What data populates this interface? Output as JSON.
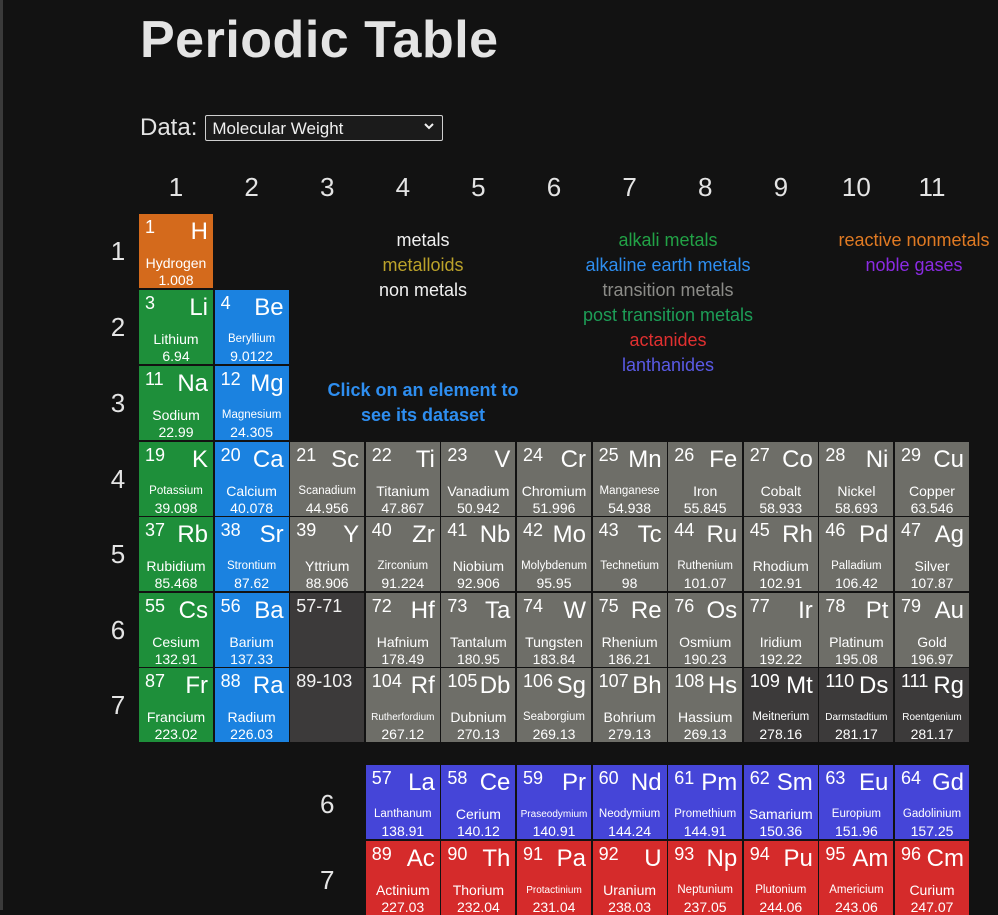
{
  "title": "Periodic Table",
  "data_selector": {
    "label": "Data:",
    "value": "Molecular Weight",
    "chevron_icon": "chevron-down-icon"
  },
  "column_numbers": [
    "1",
    "2",
    "3",
    "4",
    "5",
    "6",
    "7",
    "8",
    "9",
    "10",
    "11"
  ],
  "row_numbers": [
    "1",
    "2",
    "3",
    "4",
    "5",
    "6",
    "7"
  ],
  "series_row_numbers": [
    "6",
    "7"
  ],
  "legend": {
    "group1": [
      "metals",
      "metalloids",
      "non metals"
    ],
    "group2": [
      "alkali metals",
      "alkaline earth metals",
      "transition metals",
      "post transition metals",
      "actanides",
      "lanthanides"
    ],
    "group3": [
      "reactive nonmetals",
      "noble gases"
    ]
  },
  "hint": "Click on an element to see its dataset",
  "placeholders": [
    "57-71",
    "89-103"
  ],
  "colors": {
    "alkali": "#1e8f3a",
    "alkaline": "#1b82e0",
    "transition": "#6e6e68",
    "reactive": "#d46a1c",
    "lanthanide": "#4545d8",
    "actinide": "#d52b2b",
    "unknown": "#3c3a3a",
    "legend_metals": "#f0f0f0",
    "legend_metalloids": "#bba22a",
    "legend_non_metals": "#f0f0f0",
    "legend_alkali": "#22a246",
    "legend_alkaline": "#2e8ef0",
    "legend_transition": "#8c8c88",
    "legend_post_transition": "#1d9e57",
    "legend_actanides": "#e03030",
    "legend_lanthanides": "#5a5ae6",
    "legend_reactive": "#e07a23",
    "legend_noble": "#8a2be2"
  },
  "elements": [
    {
      "n": "1",
      "s": "H",
      "name": "Hydrogen",
      "w": "1.008",
      "cat": "reactive",
      "row": 1,
      "col": 1
    },
    {
      "n": "3",
      "s": "Li",
      "name": "Lithium",
      "w": "6.94",
      "cat": "alkali",
      "row": 2,
      "col": 1
    },
    {
      "n": "4",
      "s": "Be",
      "name": "Beryllium",
      "w": "9.0122",
      "cat": "alkaline",
      "row": 2,
      "col": 2,
      "sz": "sm"
    },
    {
      "n": "11",
      "s": "Na",
      "name": "Sodium",
      "w": "22.99",
      "cat": "alkali",
      "row": 3,
      "col": 1
    },
    {
      "n": "12",
      "s": "Mg",
      "name": "Magnesium",
      "w": "24.305",
      "cat": "alkaline",
      "row": 3,
      "col": 2,
      "sz": "sm"
    },
    {
      "n": "19",
      "s": "K",
      "name": "Potassium",
      "w": "39.098",
      "cat": "alkali",
      "row": 4,
      "col": 1,
      "sz": "sm"
    },
    {
      "n": "20",
      "s": "Ca",
      "name": "Calcium",
      "w": "40.078",
      "cat": "alkaline",
      "row": 4,
      "col": 2
    },
    {
      "n": "21",
      "s": "Sc",
      "name": "Scanadium",
      "w": "44.956",
      "cat": "transition",
      "row": 4,
      "col": 3,
      "sz": "sm"
    },
    {
      "n": "22",
      "s": "Ti",
      "name": "Titanium",
      "w": "47.867",
      "cat": "transition",
      "row": 4,
      "col": 4
    },
    {
      "n": "23",
      "s": "V",
      "name": "Vanadium",
      "w": "50.942",
      "cat": "transition",
      "row": 4,
      "col": 5
    },
    {
      "n": "24",
      "s": "Cr",
      "name": "Chromium",
      "w": "51.996",
      "cat": "transition",
      "row": 4,
      "col": 6
    },
    {
      "n": "25",
      "s": "Mn",
      "name": "Manganese",
      "w": "54.938",
      "cat": "transition",
      "row": 4,
      "col": 7,
      "sz": "sm"
    },
    {
      "n": "26",
      "s": "Fe",
      "name": "Iron",
      "w": "55.845",
      "cat": "transition",
      "row": 4,
      "col": 8
    },
    {
      "n": "27",
      "s": "Co",
      "name": "Cobalt",
      "w": "58.933",
      "cat": "transition",
      "row": 4,
      "col": 9
    },
    {
      "n": "28",
      "s": "Ni",
      "name": "Nickel",
      "w": "58.693",
      "cat": "transition",
      "row": 4,
      "col": 10
    },
    {
      "n": "29",
      "s": "Cu",
      "name": "Copper",
      "w": "63.546",
      "cat": "transition",
      "row": 4,
      "col": 11
    },
    {
      "n": "37",
      "s": "Rb",
      "name": "Rubidium",
      "w": "85.468",
      "cat": "alkali",
      "row": 5,
      "col": 1
    },
    {
      "n": "38",
      "s": "Sr",
      "name": "Strontium",
      "w": "87.62",
      "cat": "alkaline",
      "row": 5,
      "col": 2,
      "sz": "sm"
    },
    {
      "n": "39",
      "s": "Y",
      "name": "Yttrium",
      "w": "88.906",
      "cat": "transition",
      "row": 5,
      "col": 3
    },
    {
      "n": "40",
      "s": "Zr",
      "name": "Zirconium",
      "w": "91.224",
      "cat": "transition",
      "row": 5,
      "col": 4,
      "sz": "sm"
    },
    {
      "n": "41",
      "s": "Nb",
      "name": "Niobium",
      "w": "92.906",
      "cat": "transition",
      "row": 5,
      "col": 5
    },
    {
      "n": "42",
      "s": "Mo",
      "name": "Molybdenum",
      "w": "95.95",
      "cat": "transition",
      "row": 5,
      "col": 6,
      "sz": "sm"
    },
    {
      "n": "43",
      "s": "Tc",
      "name": "Technetium",
      "w": "98",
      "cat": "transition",
      "row": 5,
      "col": 7,
      "sz": "sm"
    },
    {
      "n": "44",
      "s": "Ru",
      "name": "Ruthenium",
      "w": "101.07",
      "cat": "transition",
      "row": 5,
      "col": 8,
      "sz": "sm"
    },
    {
      "n": "45",
      "s": "Rh",
      "name": "Rhodium",
      "w": "102.91",
      "cat": "transition",
      "row": 5,
      "col": 9
    },
    {
      "n": "46",
      "s": "Pd",
      "name": "Palladium",
      "w": "106.42",
      "cat": "transition",
      "row": 5,
      "col": 10,
      "sz": "sm"
    },
    {
      "n": "47",
      "s": "Ag",
      "name": "Silver",
      "w": "107.87",
      "cat": "transition",
      "row": 5,
      "col": 11
    },
    {
      "n": "55",
      "s": "Cs",
      "name": "Cesium",
      "w": "132.91",
      "cat": "alkali",
      "row": 6,
      "col": 1
    },
    {
      "n": "56",
      "s": "Ba",
      "name": "Barium",
      "w": "137.33",
      "cat": "alkaline",
      "row": 6,
      "col": 2
    },
    {
      "n": "72",
      "s": "Hf",
      "name": "Hafnium",
      "w": "178.49",
      "cat": "transition",
      "row": 6,
      "col": 4
    },
    {
      "n": "73",
      "s": "Ta",
      "name": "Tantalum",
      "w": "180.95",
      "cat": "transition",
      "row": 6,
      "col": 5
    },
    {
      "n": "74",
      "s": "W",
      "name": "Tungsten",
      "w": "183.84",
      "cat": "transition",
      "row": 6,
      "col": 6
    },
    {
      "n": "75",
      "s": "Re",
      "name": "Rhenium",
      "w": "186.21",
      "cat": "transition",
      "row": 6,
      "col": 7
    },
    {
      "n": "76",
      "s": "Os",
      "name": "Osmium",
      "w": "190.23",
      "cat": "transition",
      "row": 6,
      "col": 8
    },
    {
      "n": "77",
      "s": "Ir",
      "name": "Iridium",
      "w": "192.22",
      "cat": "transition",
      "row": 6,
      "col": 9
    },
    {
      "n": "78",
      "s": "Pt",
      "name": "Platinum",
      "w": "195.08",
      "cat": "transition",
      "row": 6,
      "col": 10
    },
    {
      "n": "79",
      "s": "Au",
      "name": "Gold",
      "w": "196.97",
      "cat": "transition",
      "row": 6,
      "col": 11
    },
    {
      "n": "87",
      "s": "Fr",
      "name": "Francium",
      "w": "223.02",
      "cat": "alkali",
      "row": 7,
      "col": 1
    },
    {
      "n": "88",
      "s": "Ra",
      "name": "Radium",
      "w": "226.03",
      "cat": "alkaline",
      "row": 7,
      "col": 2
    },
    {
      "n": "104",
      "s": "Rf",
      "name": "Rutherfordium",
      "w": "267.12",
      "cat": "transition",
      "row": 7,
      "col": 4,
      "sz": "xs"
    },
    {
      "n": "105",
      "s": "Db",
      "name": "Dubnium",
      "w": "270.13",
      "cat": "transition",
      "row": 7,
      "col": 5
    },
    {
      "n": "106",
      "s": "Sg",
      "name": "Seaborgium",
      "w": "269.13",
      "cat": "transition",
      "row": 7,
      "col": 6,
      "sz": "sm"
    },
    {
      "n": "107",
      "s": "Bh",
      "name": "Bohrium",
      "w": "279.13",
      "cat": "transition",
      "row": 7,
      "col": 7
    },
    {
      "n": "108",
      "s": "Hs",
      "name": "Hassium",
      "w": "269.13",
      "cat": "transition",
      "row": 7,
      "col": 8
    },
    {
      "n": "109",
      "s": "Mt",
      "name": "Meitnerium",
      "w": "278.16",
      "cat": "unknown",
      "row": 7,
      "col": 9,
      "sz": "sm"
    },
    {
      "n": "110",
      "s": "Ds",
      "name": "Darmstadtium",
      "w": "281.17",
      "cat": "unknown",
      "row": 7,
      "col": 10,
      "sz": "xs"
    },
    {
      "n": "111",
      "s": "Rg",
      "name": "Roentgenium",
      "w": "281.17",
      "cat": "unknown",
      "row": 7,
      "col": 11,
      "sz": "xs"
    },
    {
      "n": "57",
      "s": "La",
      "name": "Lanthanum",
      "w": "138.91",
      "cat": "lanthanide",
      "row": 8,
      "col": 4,
      "sz": "sm"
    },
    {
      "n": "58",
      "s": "Ce",
      "name": "Cerium",
      "w": "140.12",
      "cat": "lanthanide",
      "row": 8,
      "col": 5
    },
    {
      "n": "59",
      "s": "Pr",
      "name": "Praseodymium",
      "w": "140.91",
      "cat": "lanthanide",
      "row": 8,
      "col": 6,
      "sz": "xs"
    },
    {
      "n": "60",
      "s": "Nd",
      "name": "Neodymium",
      "w": "144.24",
      "cat": "lanthanide",
      "row": 8,
      "col": 7,
      "sz": "sm"
    },
    {
      "n": "61",
      "s": "Pm",
      "name": "Promethium",
      "w": "144.91",
      "cat": "lanthanide",
      "row": 8,
      "col": 8,
      "sz": "sm"
    },
    {
      "n": "62",
      "s": "Sm",
      "name": "Samarium",
      "w": "150.36",
      "cat": "lanthanide",
      "row": 8,
      "col": 9
    },
    {
      "n": "63",
      "s": "Eu",
      "name": "Europium",
      "w": "151.96",
      "cat": "lanthanide",
      "row": 8,
      "col": 10,
      "sz": "sm"
    },
    {
      "n": "64",
      "s": "Gd",
      "name": "Gadolinium",
      "w": "157.25",
      "cat": "lanthanide",
      "row": 8,
      "col": 11,
      "sz": "sm"
    },
    {
      "n": "89",
      "s": "Ac",
      "name": "Actinium",
      "w": "227.03",
      "cat": "actinide",
      "row": 9,
      "col": 4
    },
    {
      "n": "90",
      "s": "Th",
      "name": "Thorium",
      "w": "232.04",
      "cat": "actinide",
      "row": 9,
      "col": 5
    },
    {
      "n": "91",
      "s": "Pa",
      "name": "Protactinium",
      "w": "231.04",
      "cat": "actinide",
      "row": 9,
      "col": 6,
      "sz": "xs"
    },
    {
      "n": "92",
      "s": "U",
      "name": "Uranium",
      "w": "238.03",
      "cat": "actinide",
      "row": 9,
      "col": 7
    },
    {
      "n": "93",
      "s": "Np",
      "name": "Neptunium",
      "w": "237.05",
      "cat": "actinide",
      "row": 9,
      "col": 8,
      "sz": "sm"
    },
    {
      "n": "94",
      "s": "Pu",
      "name": "Plutonium",
      "w": "244.06",
      "cat": "actinide",
      "row": 9,
      "col": 9,
      "sz": "sm"
    },
    {
      "n": "95",
      "s": "Am",
      "name": "Americium",
      "w": "243.06",
      "cat": "actinide",
      "row": 9,
      "col": 10,
      "sz": "sm"
    },
    {
      "n": "96",
      "s": "Cm",
      "name": "Curium",
      "w": "247.07",
      "cat": "actinide",
      "row": 9,
      "col": 11
    }
  ]
}
